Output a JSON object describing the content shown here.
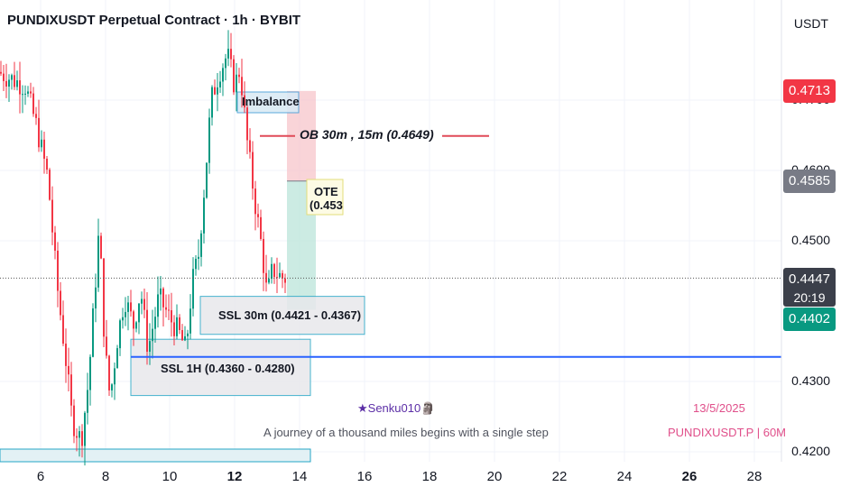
{
  "header": {
    "title": "PUNDIXUSDT Perpetual Contract · 1h · BYBIT"
  },
  "price_axis": {
    "currency": "USDT",
    "ticks": [
      "0.4700",
      "0.4600",
      "0.4500",
      "0.4300",
      "0.4200"
    ],
    "tags": {
      "upper": {
        "value": "0.4713",
        "color": "#f23645"
      },
      "mid": {
        "value": "0.4585",
        "color": "#787b86"
      },
      "current": {
        "value": "0.4447",
        "countdown": "20:19",
        "color": "#3b3f4a"
      },
      "lower": {
        "value": "0.4402",
        "color": "#089981"
      }
    }
  },
  "time_axis": {
    "ticks": [
      {
        "label": "6",
        "bold": false
      },
      {
        "label": "8",
        "bold": false
      },
      {
        "label": "10",
        "bold": false
      },
      {
        "label": "12",
        "bold": true
      },
      {
        "label": "14",
        "bold": false
      },
      {
        "label": "16",
        "bold": false
      },
      {
        "label": "18",
        "bold": false
      },
      {
        "label": "20",
        "bold": false
      },
      {
        "label": "22",
        "bold": false
      },
      {
        "label": "24",
        "bold": false
      },
      {
        "label": "26",
        "bold": true
      },
      {
        "label": "28",
        "bold": false
      }
    ]
  },
  "annotations": {
    "imbalance": "Imbalance",
    "ob": "OB 30m , 15m (0.4649)",
    "ote_line1": "OTE",
    "ote_line2": "(0.453",
    "ssl_30m": "SSL 30m (0.4421 - 0.4367)",
    "ssl_1h": "SSL 1H (0.4360 - 0.4280)"
  },
  "watermark": {
    "author": "★Senku010🗿",
    "date": "13/5/2025",
    "quote": "A journey of a thousand miles begins with a single step",
    "symbol": "PUNDIXUSDT.P | 60M"
  },
  "colors": {
    "up": "#089981",
    "down": "#f23645",
    "level_line": "#2962ff"
  },
  "chart_data": {
    "type": "candlestick",
    "symbol": "PUNDIXUSDT",
    "interval": "1h",
    "y_range": [
      0.4195,
      0.476
    ],
    "x_ticks": [
      "6",
      "8",
      "10",
      "12",
      "14",
      "16",
      "18",
      "20",
      "22",
      "24",
      "26",
      "28"
    ],
    "last_price": 0.4447,
    "levels": {
      "horizontal_support": 0.4335,
      "ob": 0.4649,
      "ote": 0.453,
      "ssl_30m": [
        0.4367,
        0.4421
      ],
      "ssl_1h": [
        0.428,
        0.436
      ]
    },
    "position_box": {
      "entry": 0.4585,
      "stop": 0.4713,
      "target": 0.4402
    }
  }
}
